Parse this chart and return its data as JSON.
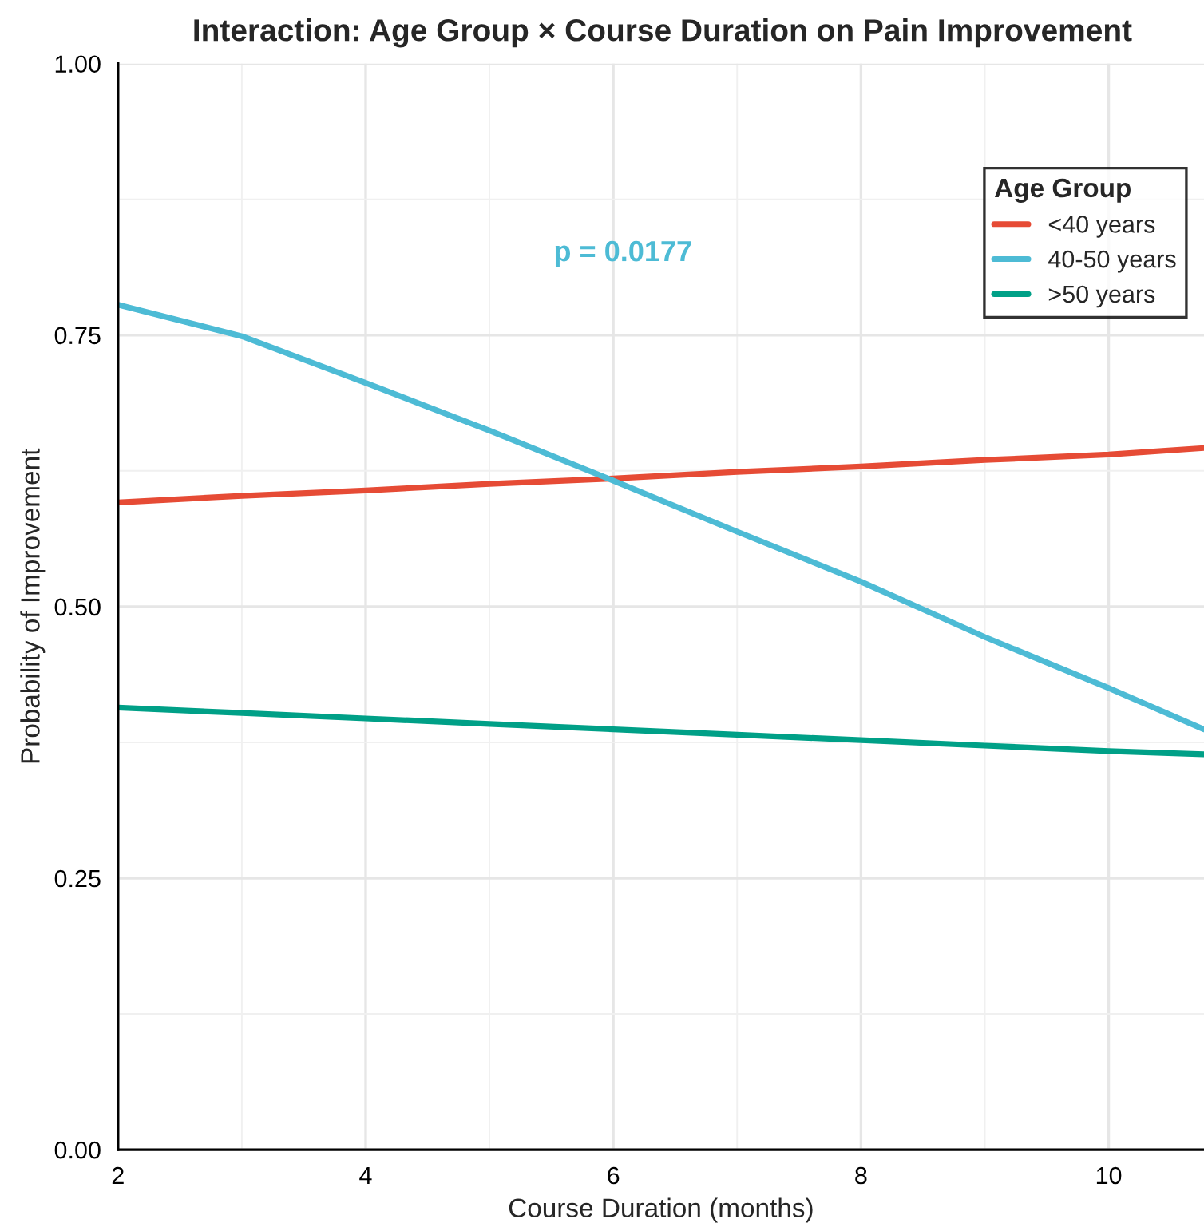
{
  "chart_data": {
    "type": "line",
    "title": "Interaction: Age Group × Course Duration on Pain Improvement",
    "xlabel": "Course Duration (months)",
    "ylabel": "Probability of Improvement",
    "legend_title": "Age Group",
    "x": [
      2,
      3,
      4,
      5,
      6,
      7,
      8,
      9,
      10,
      10.77
    ],
    "series": [
      {
        "name": "<40 years",
        "color": "#e64b35",
        "values": [
          0.596,
          0.602,
          0.607,
          0.613,
          0.618,
          0.624,
          0.629,
          0.635,
          0.64,
          0.646
        ]
      },
      {
        "name": "40-50 years",
        "color": "#4dbbd5",
        "values": [
          0.778,
          0.749,
          0.706,
          0.662,
          0.616,
          0.569,
          0.523,
          0.472,
          0.425,
          0.387
        ]
      },
      {
        "name": ">50 years",
        "color": "#00a087",
        "values": [
          0.407,
          0.402,
          0.397,
          0.392,
          0.387,
          0.382,
          0.377,
          0.372,
          0.367,
          0.364
        ]
      }
    ],
    "annotations": [
      "p = 0.0177"
    ],
    "xlim": [
      2,
      10.77
    ],
    "xticks": [
      2,
      4,
      6,
      8,
      10
    ],
    "ylim": [
      0,
      1
    ],
    "yticks": [
      {
        "value": 0,
        "label": "0.00"
      },
      {
        "value": 0.25,
        "label": "0.25"
      },
      {
        "value": 0.5,
        "label": "0.50"
      },
      {
        "value": 0.75,
        "label": "0.75"
      },
      {
        "value": 1,
        "label": "1.00"
      }
    ],
    "grid": true,
    "legend": "top right",
    "marker": "none",
    "line_style": "solid"
  }
}
